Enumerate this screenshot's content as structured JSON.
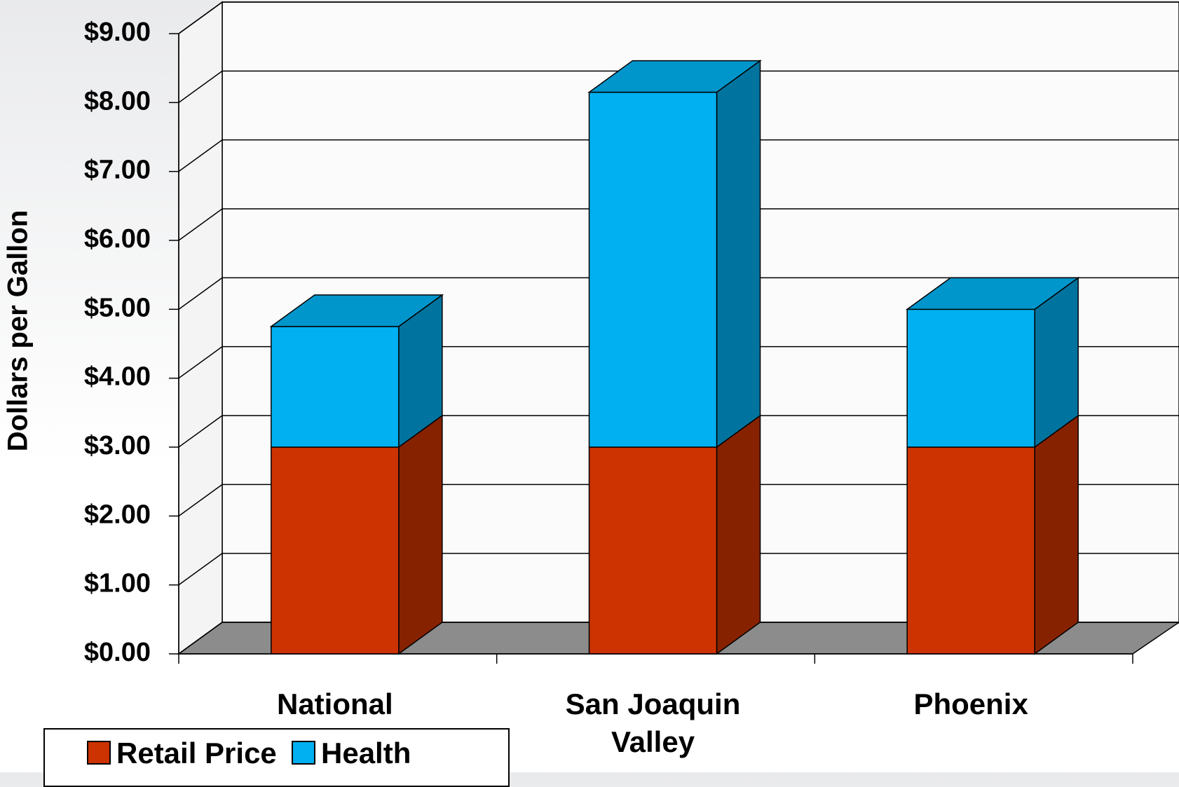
{
  "chart_data": {
    "type": "bar3d-stacked",
    "y_label": "Dollars per Gallon",
    "categories": [
      "National",
      "San Joaquin Valley",
      "Phoenix"
    ],
    "series": [
      {
        "name": "Retail Price",
        "color": "#cc3300",
        "values": [
          3.0,
          3.0,
          3.0
        ]
      },
      {
        "name": "Health",
        "color": "#00b0f0",
        "values": [
          1.75,
          5.15,
          2.0
        ]
      }
    ],
    "ylim": [
      0,
      9
    ],
    "yticks": [
      {
        "value": 0,
        "label": "$0.00"
      },
      {
        "value": 1,
        "label": "$1.00"
      },
      {
        "value": 2,
        "label": "$2.00"
      },
      {
        "value": 3,
        "label": "$3.00"
      },
      {
        "value": 4,
        "label": "$4.00"
      },
      {
        "value": 5,
        "label": "$5.00"
      },
      {
        "value": 6,
        "label": "$6.00"
      },
      {
        "value": 7,
        "label": "$7.00"
      },
      {
        "value": 8,
        "label": "$8.00"
      },
      {
        "value": 9,
        "label": "$9.00"
      }
    ],
    "grid": true
  }
}
